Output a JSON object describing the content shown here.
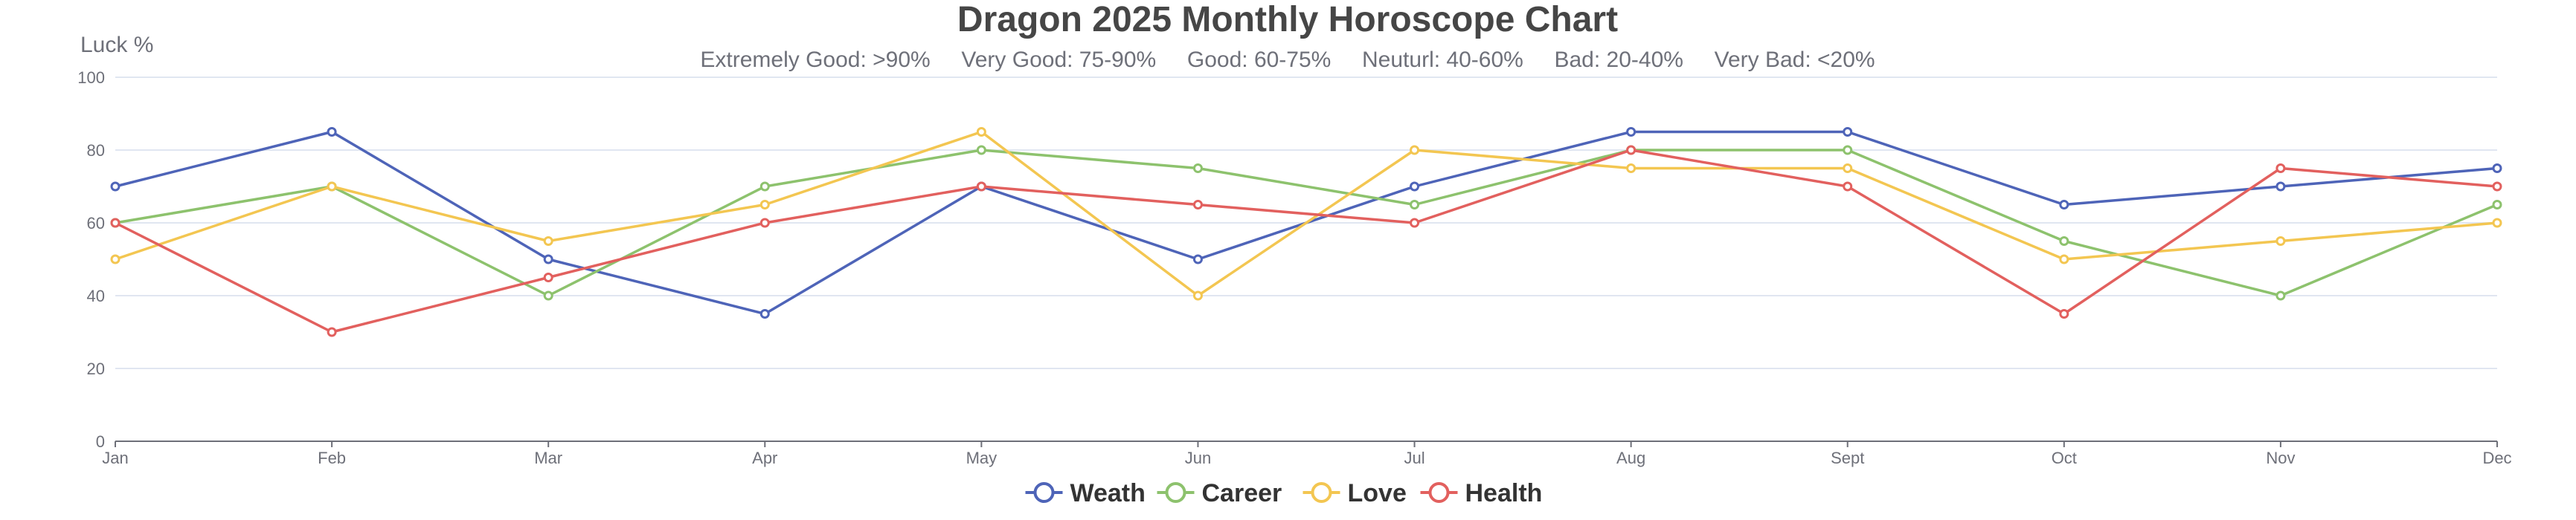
{
  "chart_data": {
    "type": "line",
    "title": "Dragon 2025 Monthly Horoscope Chart",
    "subtitle": "Extremely Good: >90%     Very Good: 75-90%     Good: 60-75%     Neuturl: 40-60%     Bad: 20-40%     Very Bad: <20%",
    "ylabel": "Luck %",
    "xlabel": "",
    "categories": [
      "Jan",
      "Feb",
      "Mar",
      "Apr",
      "May",
      "Jun",
      "Jul",
      "Aug",
      "Sept",
      "Oct",
      "Nov",
      "Dec"
    ],
    "ylim": [
      0,
      100
    ],
    "yticks": [
      0,
      20,
      40,
      60,
      80,
      100
    ],
    "grid": true,
    "legend_position": "bottom-center",
    "series": [
      {
        "name": "Weath",
        "color": "#4e64b8",
        "values": [
          70,
          85,
          50,
          35,
          70,
          50,
          70,
          85,
          85,
          65,
          70,
          75
        ]
      },
      {
        "name": "Career",
        "color": "#8dc26d",
        "values": [
          60,
          70,
          40,
          70,
          80,
          75,
          65,
          80,
          80,
          55,
          40,
          65
        ]
      },
      {
        "name": "Love",
        "color": "#f3c651",
        "values": [
          50,
          70,
          55,
          65,
          85,
          40,
          80,
          75,
          75,
          50,
          55,
          60
        ]
      },
      {
        "name": "Health",
        "color": "#e2605e",
        "values": [
          60,
          30,
          45,
          60,
          70,
          65,
          60,
          80,
          70,
          35,
          75,
          70
        ]
      }
    ]
  }
}
